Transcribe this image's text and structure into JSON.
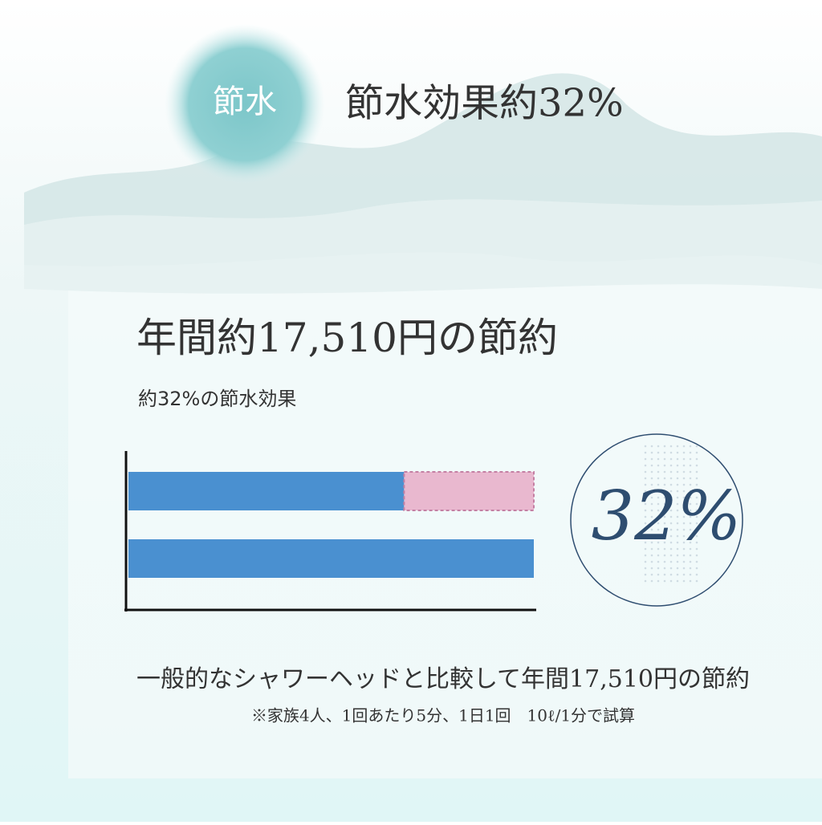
{
  "header": {
    "badge": "節水",
    "title": "節水効果約32%"
  },
  "chart_data": {
    "type": "bar",
    "orientation": "horizontal",
    "stacked": true,
    "title": "年間約17,510円の節約",
    "subtitle": "約32%の節水効果",
    "categories": [
      null,
      null
    ],
    "series": [
      {
        "color": "#4a90d0",
        "values": [
          68,
          100
        ]
      },
      {
        "color": "#e9b8cf",
        "values": [
          32,
          null
        ]
      }
    ],
    "xlim": [
      0,
      100
    ],
    "annotation": "32%"
  },
  "footer": {
    "text": "一般的なシャワーヘッドと比較して年間17,510円の節約",
    "note": "※家族4人、1回あたり5分、1日1回　10ℓ/1分で試算"
  }
}
